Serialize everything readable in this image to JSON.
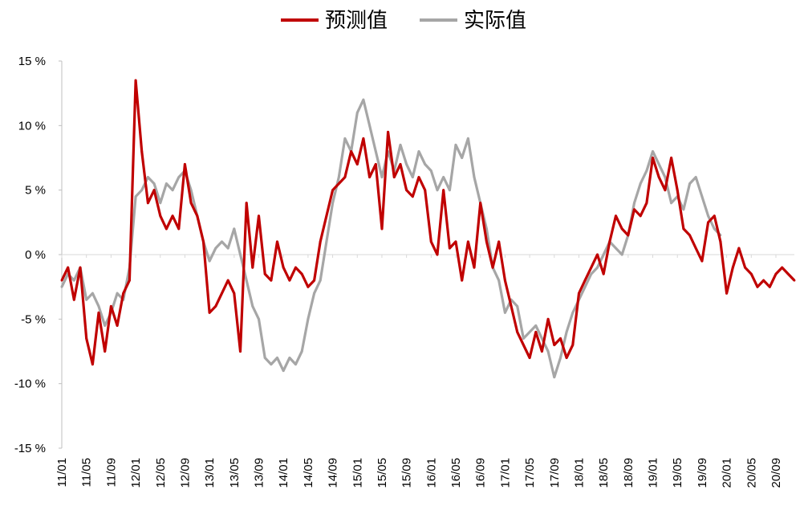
{
  "chart_data": {
    "type": "line",
    "legend_position": "top-center",
    "grid": false,
    "ylim": [
      -15,
      15
    ],
    "yticks": [
      -15,
      -10,
      -5,
      0,
      5,
      10,
      15
    ],
    "ytick_labels": [
      "-15 %",
      "-10 %",
      "-5 %",
      "0 %",
      "5 %",
      "10 %",
      "15 %"
    ],
    "x_range": [
      "11/01",
      "20/12"
    ],
    "xtick_labels": [
      "11/01",
      "11/05",
      "11/09",
      "12/01",
      "12/05",
      "12/09",
      "13/01",
      "13/05",
      "13/09",
      "14/01",
      "14/05",
      "14/09",
      "15/01",
      "15/05",
      "15/09",
      "16/01",
      "16/05",
      "16/09",
      "17/01",
      "17/05",
      "17/09",
      "18/01",
      "18/05",
      "18/09",
      "19/01",
      "19/05",
      "19/09",
      "20/01",
      "20/05",
      "20/09"
    ],
    "series": [
      {
        "name": "预测值",
        "color": "#C00000",
        "points": [
          [
            "11/01",
            -2.0
          ],
          [
            "11/02",
            -1.0
          ],
          [
            "11/03",
            -3.5
          ],
          [
            "11/04",
            -1.0
          ],
          [
            "11/05",
            -6.5
          ],
          [
            "11/06",
            -8.5
          ],
          [
            "11/07",
            -4.5
          ],
          [
            "11/08",
            -7.5
          ],
          [
            "11/09",
            -4.0
          ],
          [
            "11/10",
            -5.5
          ],
          [
            "11/11",
            -3.0
          ],
          [
            "11/12",
            -2.0
          ],
          [
            "12/01",
            13.5
          ],
          [
            "12/02",
            8.0
          ],
          [
            "12/03",
            4.0
          ],
          [
            "12/04",
            5.0
          ],
          [
            "12/05",
            3.0
          ],
          [
            "12/06",
            2.0
          ],
          [
            "12/07",
            3.0
          ],
          [
            "12/08",
            2.0
          ],
          [
            "12/09",
            7.0
          ],
          [
            "12/10",
            4.0
          ],
          [
            "12/11",
            3.0
          ],
          [
            "12/12",
            1.0
          ],
          [
            "13/01",
            -4.5
          ],
          [
            "13/02",
            -4.0
          ],
          [
            "13/03",
            -3.0
          ],
          [
            "13/04",
            -2.0
          ],
          [
            "13/05",
            -3.0
          ],
          [
            "13/06",
            -7.5
          ],
          [
            "13/07",
            4.0
          ],
          [
            "13/08",
            -1.0
          ],
          [
            "13/09",
            3.0
          ],
          [
            "13/10",
            -1.5
          ],
          [
            "13/11",
            -2.0
          ],
          [
            "13/12",
            1.0
          ],
          [
            "14/01",
            -1.0
          ],
          [
            "14/02",
            -2.0
          ],
          [
            "14/03",
            -1.0
          ],
          [
            "14/04",
            -1.5
          ],
          [
            "14/05",
            -2.5
          ],
          [
            "14/06",
            -2.0
          ],
          [
            "14/07",
            1.0
          ],
          [
            "14/08",
            3.0
          ],
          [
            "14/09",
            5.0
          ],
          [
            "14/10",
            5.5
          ],
          [
            "14/11",
            6.0
          ],
          [
            "14/12",
            8.0
          ],
          [
            "15/01",
            7.0
          ],
          [
            "15/02",
            9.0
          ],
          [
            "15/03",
            6.0
          ],
          [
            "15/04",
            7.0
          ],
          [
            "15/05",
            2.0
          ],
          [
            "15/06",
            9.5
          ],
          [
            "15/07",
            6.0
          ],
          [
            "15/08",
            7.0
          ],
          [
            "15/09",
            5.0
          ],
          [
            "15/10",
            4.5
          ],
          [
            "15/11",
            6.0
          ],
          [
            "15/12",
            5.0
          ],
          [
            "16/01",
            1.0
          ],
          [
            "16/02",
            0.0
          ],
          [
            "16/03",
            5.0
          ],
          [
            "16/04",
            0.5
          ],
          [
            "16/05",
            1.0
          ],
          [
            "16/06",
            -2.0
          ],
          [
            "16/07",
            1.0
          ],
          [
            "16/08",
            -1.0
          ],
          [
            "16/09",
            4.0
          ],
          [
            "16/10",
            1.0
          ],
          [
            "16/11",
            -1.0
          ],
          [
            "16/12",
            1.0
          ],
          [
            "17/01",
            -2.0
          ],
          [
            "17/02",
            -4.0
          ],
          [
            "17/03",
            -6.0
          ],
          [
            "17/04",
            -7.0
          ],
          [
            "17/05",
            -8.0
          ],
          [
            "17/06",
            -6.0
          ],
          [
            "17/07",
            -7.5
          ],
          [
            "17/08",
            -5.0
          ],
          [
            "17/09",
            -7.0
          ],
          [
            "17/10",
            -6.5
          ],
          [
            "17/11",
            -8.0
          ],
          [
            "17/12",
            -7.0
          ],
          [
            "18/01",
            -3.0
          ],
          [
            "18/02",
            -2.0
          ],
          [
            "18/03",
            -1.0
          ],
          [
            "18/04",
            0.0
          ],
          [
            "18/05",
            -1.5
          ],
          [
            "18/06",
            1.0
          ],
          [
            "18/07",
            3.0
          ],
          [
            "18/08",
            2.0
          ],
          [
            "18/09",
            1.5
          ],
          [
            "18/10",
            3.5
          ],
          [
            "18/11",
            3.0
          ],
          [
            "18/12",
            4.0
          ],
          [
            "19/01",
            7.5
          ],
          [
            "19/02",
            6.0
          ],
          [
            "19/03",
            5.0
          ],
          [
            "19/04",
            7.5
          ],
          [
            "19/05",
            5.0
          ],
          [
            "19/06",
            2.0
          ],
          [
            "19/07",
            1.5
          ],
          [
            "19/08",
            0.5
          ],
          [
            "19/09",
            -0.5
          ],
          [
            "19/10",
            2.5
          ],
          [
            "19/11",
            3.0
          ],
          [
            "19/12",
            1.0
          ],
          [
            "20/01",
            -3.0
          ],
          [
            "20/02",
            -1.0
          ],
          [
            "20/03",
            0.5
          ],
          [
            "20/04",
            -1.0
          ],
          [
            "20/05",
            -1.5
          ],
          [
            "20/06",
            -2.5
          ],
          [
            "20/07",
            -2.0
          ],
          [
            "20/08",
            -2.5
          ],
          [
            "20/09",
            -1.5
          ],
          [
            "20/10",
            -1.0
          ],
          [
            "20/11",
            -1.5
          ],
          [
            "20/12",
            -2.0
          ]
        ]
      },
      {
        "name": "实际值",
        "color": "#A6A6A6",
        "points": [
          [
            "11/01",
            -2.5
          ],
          [
            "11/02",
            -1.5
          ],
          [
            "11/03",
            -2.0
          ],
          [
            "11/04",
            -1.0
          ],
          [
            "11/05",
            -3.5
          ],
          [
            "11/06",
            -3.0
          ],
          [
            "11/07",
            -4.0
          ],
          [
            "11/08",
            -5.5
          ],
          [
            "11/09",
            -4.5
          ],
          [
            "11/10",
            -3.0
          ],
          [
            "11/11",
            -3.5
          ],
          [
            "11/12",
            -1.0
          ],
          [
            "12/01",
            4.5
          ],
          [
            "12/02",
            5.0
          ],
          [
            "12/03",
            6.0
          ],
          [
            "12/04",
            5.5
          ],
          [
            "12/05",
            4.0
          ],
          [
            "12/06",
            5.5
          ],
          [
            "12/07",
            5.0
          ],
          [
            "12/08",
            6.0
          ],
          [
            "12/09",
            6.5
          ],
          [
            "12/10",
            5.0
          ],
          [
            "12/11",
            3.0
          ],
          [
            "12/12",
            1.0
          ],
          [
            "13/01",
            -0.5
          ],
          [
            "13/02",
            0.5
          ],
          [
            "13/03",
            1.0
          ],
          [
            "13/04",
            0.5
          ],
          [
            "13/05",
            2.0
          ],
          [
            "13/06",
            0.0
          ],
          [
            "13/07",
            -2.0
          ],
          [
            "13/08",
            -4.0
          ],
          [
            "13/09",
            -5.0
          ],
          [
            "13/10",
            -8.0
          ],
          [
            "13/11",
            -8.5
          ],
          [
            "13/12",
            -8.0
          ],
          [
            "14/01",
            -9.0
          ],
          [
            "14/02",
            -8.0
          ],
          [
            "14/03",
            -8.5
          ],
          [
            "14/04",
            -7.5
          ],
          [
            "14/05",
            -5.0
          ],
          [
            "14/06",
            -3.0
          ],
          [
            "14/07",
            -2.0
          ],
          [
            "14/08",
            1.0
          ],
          [
            "14/09",
            4.0
          ],
          [
            "14/10",
            6.0
          ],
          [
            "14/11",
            9.0
          ],
          [
            "14/12",
            8.0
          ],
          [
            "15/01",
            11.0
          ],
          [
            "15/02",
            12.0
          ],
          [
            "15/03",
            10.0
          ],
          [
            "15/04",
            8.0
          ],
          [
            "15/05",
            6.0
          ],
          [
            "15/06",
            8.0
          ],
          [
            "15/07",
            6.5
          ],
          [
            "15/08",
            8.5
          ],
          [
            "15/09",
            7.0
          ],
          [
            "15/10",
            6.0
          ],
          [
            "15/11",
            8.0
          ],
          [
            "15/12",
            7.0
          ],
          [
            "16/01",
            6.5
          ],
          [
            "16/02",
            5.0
          ],
          [
            "16/03",
            6.0
          ],
          [
            "16/04",
            5.0
          ],
          [
            "16/05",
            8.5
          ],
          [
            "16/06",
            7.5
          ],
          [
            "16/07",
            9.0
          ],
          [
            "16/08",
            6.0
          ],
          [
            "16/09",
            4.0
          ],
          [
            "16/10",
            2.0
          ],
          [
            "16/11",
            -1.0
          ],
          [
            "16/12",
            -2.0
          ],
          [
            "17/01",
            -4.5
          ],
          [
            "17/02",
            -3.5
          ],
          [
            "17/03",
            -4.0
          ],
          [
            "17/04",
            -6.5
          ],
          [
            "17/05",
            -6.0
          ],
          [
            "17/06",
            -5.5
          ],
          [
            "17/07",
            -6.5
          ],
          [
            "17/08",
            -7.5
          ],
          [
            "17/09",
            -9.5
          ],
          [
            "17/10",
            -8.0
          ],
          [
            "17/11",
            -6.0
          ],
          [
            "17/12",
            -4.5
          ],
          [
            "18/01",
            -3.5
          ],
          [
            "18/02",
            -2.5
          ],
          [
            "18/03",
            -1.5
          ],
          [
            "18/04",
            -1.0
          ],
          [
            "18/05",
            0.0
          ],
          [
            "18/06",
            1.0
          ],
          [
            "18/07",
            0.5
          ],
          [
            "18/08",
            0.0
          ],
          [
            "18/09",
            1.5
          ],
          [
            "18/10",
            4.0
          ],
          [
            "18/11",
            5.5
          ],
          [
            "18/12",
            6.5
          ],
          [
            "19/01",
            8.0
          ],
          [
            "19/02",
            7.0
          ],
          [
            "19/03",
            6.0
          ],
          [
            "19/04",
            4.0
          ],
          [
            "19/05",
            4.5
          ],
          [
            "19/06",
            3.5
          ],
          [
            "19/07",
            5.5
          ],
          [
            "19/08",
            6.0
          ],
          [
            "19/09",
            4.5
          ],
          [
            "19/10",
            3.0
          ],
          [
            "19/11",
            2.0
          ],
          [
            "19/12",
            1.5
          ]
        ]
      }
    ]
  }
}
